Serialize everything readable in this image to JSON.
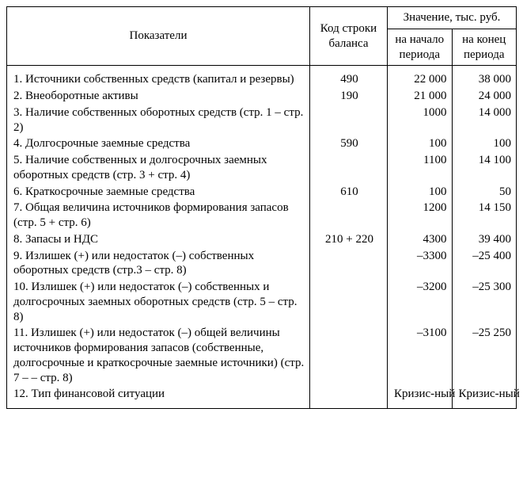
{
  "table": {
    "type": "table",
    "border_color": "#000000",
    "background_color": "#ffffff",
    "font_family": "Times New Roman",
    "font_size_pt": 11,
    "columns": {
      "indicators": "Показатели",
      "code": "Код строки баланса",
      "value_header": "Значение, тыс. руб.",
      "value_start": "на начало периода",
      "value_end": "на конец периода"
    },
    "rows": [
      {
        "label": "1. Источники собственных средств (капитал и резервы)",
        "code": "490",
        "start": "22 000",
        "end": "38 000"
      },
      {
        "label": "2. Внеоборотные активы",
        "code": "190",
        "start": "21 000",
        "end": "24 000"
      },
      {
        "label": "3. Наличие собственных оборотных средств (стр. 1 – стр. 2)",
        "code": "",
        "start": "1000",
        "end": "14 000"
      },
      {
        "label": "4. Долгосрочные заемные средства",
        "code": "590",
        "start": "100",
        "end": "100"
      },
      {
        "label": "5. Наличие собственных и долгосрочных заемных оборотных средств (стр. 3 + стр. 4)",
        "code": "",
        "start": "1100",
        "end": "14 100"
      },
      {
        "label": "6. Краткосрочные заемные средства",
        "code": "610",
        "start": "100",
        "end": "50"
      },
      {
        "label": "7. Общая величина источников формирования запасов (стр. 5 + стр. 6)",
        "code": "",
        "start": "1200",
        "end": "14 150"
      },
      {
        "label": "8. Запасы и НДС",
        "code": "210 + 220",
        "start": "4300",
        "end": "39 400"
      },
      {
        "label": "9. Излишек (+) или недостаток (–) собственных оборотных средств (стр.3 – стр. 8)",
        "code": "",
        "start": "–3300",
        "end": "–25 400"
      },
      {
        "label": "10. Излишек (+) или недостаток (–) собственных и долгосрочных заемных оборотных средств (стр. 5 – стр. 8)",
        "code": "",
        "start": "–3200",
        "end": "–25 300"
      },
      {
        "label": "11. Излишек (+) или недостаток (–) общей величины источников формирования запасов (собственные, долгосрочные и краткосрочные заемные источники) (стр. 7 – – стр. 8)",
        "code": "",
        "start": "–3100",
        "end": "–25 250"
      },
      {
        "label": "12. Тип финансовой ситуации",
        "code": "",
        "start": "Кризис-ный",
        "end": "Кризис-ный",
        "center_values": true
      }
    ]
  }
}
